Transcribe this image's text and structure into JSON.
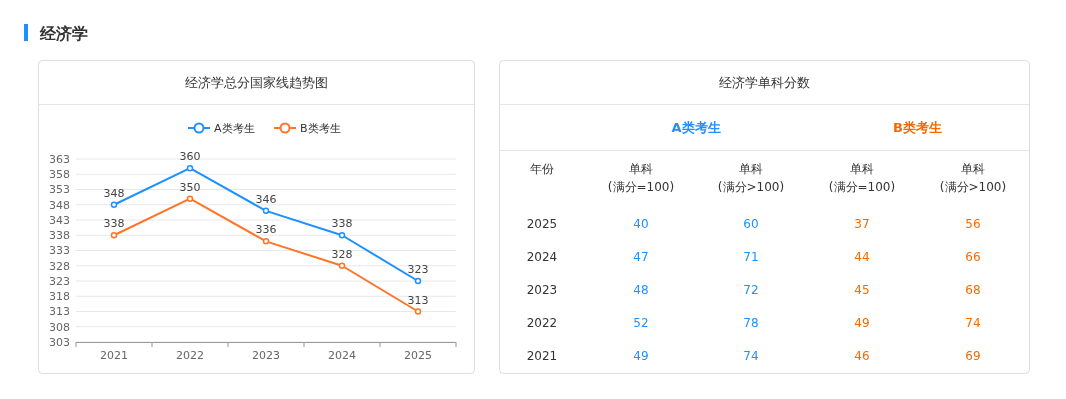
{
  "chart_data": [
    {
      "type": "line",
      "title": "经济学总分国家线趋势图",
      "annotations": [
        "经济学"
      ],
      "categories": [
        "2021",
        "2022",
        "2023",
        "2024",
        "2025"
      ],
      "series": [
        {
          "name": "A类考生",
          "color": "#1e90ff",
          "values": [
            348,
            360,
            346,
            338,
            323
          ]
        },
        {
          "name": "B类考生",
          "color": "#ff7426",
          "values": [
            338,
            350,
            336,
            328,
            313
          ]
        }
      ],
      "ylim": [
        303,
        363
      ],
      "yticks": [
        303,
        308,
        313,
        318,
        323,
        328,
        333,
        338,
        343,
        348,
        353,
        358,
        363
      ],
      "grid": "y",
      "legend": "top",
      "marker": "circle",
      "data_labels": true
    },
    {
      "type": "heatmap",
      "title": "经济学单科分数",
      "ylabel": "年份",
      "annotations": [
        "A类考生",
        "B类考生"
      ],
      "colors": [
        "#1e90ff",
        "#1e90ff",
        "#f56a00",
        "#f56a00"
      ],
      "data_labels": true,
      "categories": [
        "单科\n(满分=100)",
        "单科\n(满分>100)",
        "单科\n(满分=100)",
        "单科\n(满分>100)"
      ],
      "y_categories": [
        "2025",
        "2024",
        "2023",
        "2022",
        "2021"
      ],
      "cells": [
        [
          40,
          60,
          37,
          56
        ],
        [
          47,
          71,
          44,
          66
        ],
        [
          48,
          72,
          45,
          68
        ],
        [
          52,
          78,
          49,
          74
        ],
        [
          49,
          74,
          46,
          69
        ]
      ]
    }
  ]
}
